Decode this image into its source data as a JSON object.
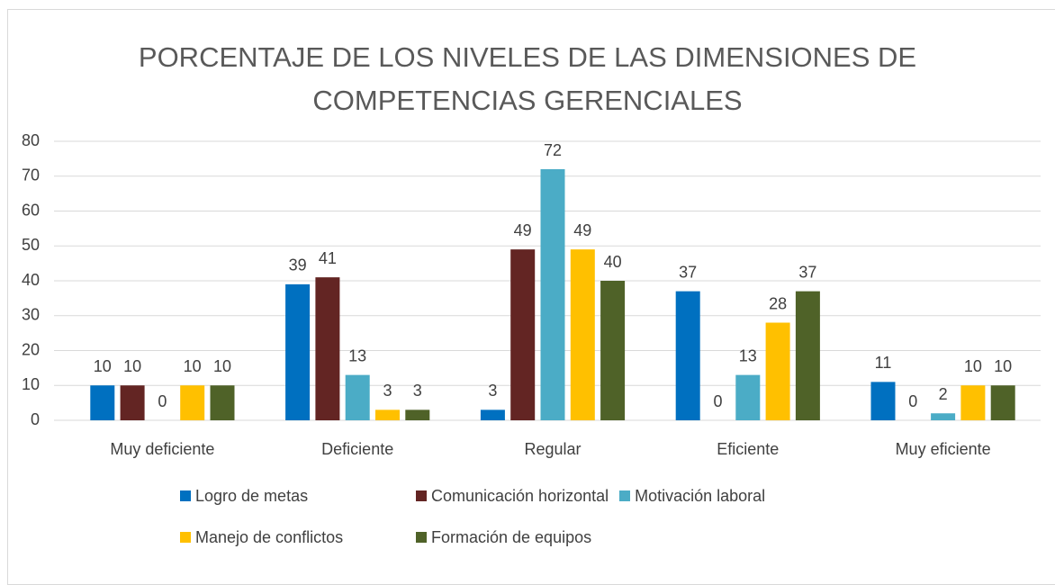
{
  "chart_data": {
    "type": "bar",
    "title": "PORCENTAJE DE LOS NIVELES DE LAS DIMENSIONES DE COMPETENCIAS GERENCIALES",
    "categories": [
      "Muy deficiente",
      "Deficiente",
      "Regular",
      "Eficiente",
      "Muy eficiente"
    ],
    "series": [
      {
        "name": "Logro de metas",
        "color": "#0070c0",
        "values": [
          10,
          39,
          3,
          37,
          11
        ]
      },
      {
        "name": "Comunicación horizontal",
        "color": "#632523",
        "values": [
          10,
          41,
          49,
          0,
          0
        ]
      },
      {
        "name": "Motivación laboral",
        "color": "#4bacc6",
        "values": [
          0,
          13,
          72,
          13,
          2
        ]
      },
      {
        "name": "Manejo de conflictos",
        "color": "#ffc000",
        "values": [
          10,
          3,
          49,
          28,
          10
        ]
      },
      {
        "name": "Formación de equipos",
        "color": "#4f6228",
        "values": [
          10,
          3,
          40,
          37,
          10
        ]
      }
    ],
    "ylim": [
      0,
      80
    ],
    "yticks": [
      0,
      10,
      20,
      30,
      40,
      50,
      60,
      70,
      80
    ],
    "grid": true,
    "legend": "bottom"
  }
}
